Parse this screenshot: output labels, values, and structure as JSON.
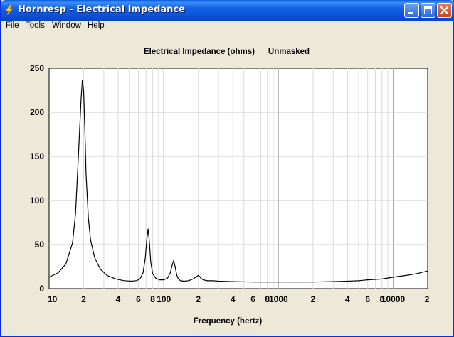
{
  "window": {
    "title": "Hornresp - Electrical Impedance",
    "controls": {
      "minimize": "minimize-icon",
      "maximize": "maximize-icon",
      "close": "close-icon"
    }
  },
  "menu": {
    "items": [
      {
        "label": "File"
      },
      {
        "label": "Tools"
      },
      {
        "label": "Window"
      },
      {
        "label": "Help"
      }
    ]
  },
  "chart_data": {
    "type": "line",
    "title": "Electrical Impedance (ohms)",
    "subtitle": "Unmasked",
    "xlabel": "Frequency (hertz)",
    "ylabel": "",
    "x_scale": "log",
    "xlim": [
      10,
      20000
    ],
    "ylim": [
      0,
      250
    ],
    "grid": true,
    "line_color": "#000000",
    "y_ticks": [
      "0",
      "50",
      "100",
      "150",
      "200",
      "250"
    ],
    "x_tick_labels": [
      {
        "x": 10,
        "label": "10"
      },
      {
        "x": 20,
        "label": "2"
      },
      {
        "x": 40,
        "label": "4"
      },
      {
        "x": 60,
        "label": "6"
      },
      {
        "x": 80,
        "label": "8"
      },
      {
        "x": 100,
        "label": "100"
      },
      {
        "x": 200,
        "label": "2"
      },
      {
        "x": 400,
        "label": "4"
      },
      {
        "x": 600,
        "label": "6"
      },
      {
        "x": 800,
        "label": "8"
      },
      {
        "x": 1000,
        "label": "1000"
      },
      {
        "x": 2000,
        "label": "2"
      },
      {
        "x": 4000,
        "label": "4"
      },
      {
        "x": 6000,
        "label": "6"
      },
      {
        "x": 8000,
        "label": "8"
      },
      {
        "x": 10000,
        "label": "10000"
      },
      {
        "x": 20000,
        "label": "2"
      }
    ],
    "series": [
      {
        "x": [
          10,
          12,
          14,
          16,
          17,
          18,
          19,
          19.5,
          20,
          20.5,
          21,
          22,
          23,
          25,
          28,
          32,
          38,
          45,
          52,
          58,
          62,
          66,
          69,
          71,
          73,
          75,
          77,
          80,
          85,
          92,
          100,
          108,
          114,
          118,
          122,
          126,
          130,
          134,
          140,
          150,
          165,
          180,
          190,
          200,
          205,
          210,
          220,
          240,
          270,
          300,
          400,
          600,
          1000,
          2000,
          3000,
          4000,
          5000,
          6000,
          8000,
          10000,
          13000,
          16000,
          20000
        ],
        "y": [
          13,
          18,
          28,
          52,
          85,
          150,
          215,
          237,
          224,
          180,
          130,
          80,
          55,
          35,
          22,
          15,
          11,
          9,
          8.5,
          9,
          11,
          18,
          35,
          55,
          68,
          52,
          30,
          17,
          12,
          10,
          10,
          12,
          18,
          26,
          32,
          24,
          15,
          11,
          9,
          8.5,
          9,
          11,
          13,
          15,
          14,
          12,
          10,
          9,
          9,
          8.5,
          8,
          7.5,
          7.5,
          7.5,
          8,
          8.5,
          9,
          10,
          11,
          13,
          15,
          17,
          20
        ]
      }
    ]
  }
}
